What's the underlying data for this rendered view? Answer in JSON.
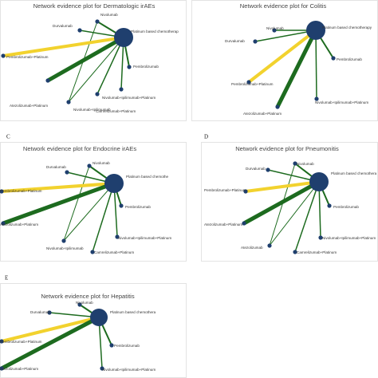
{
  "panels": [
    {
      "letter": null,
      "title": "Network evidence plot for Dermatologic irAEs",
      "hub": "Platinum based chemotherap",
      "nodes": [
        "Nivolumab",
        "Durvalumab",
        "Pembrolizumab+Platinum",
        "Pembrolizumab",
        "Atezolizumab+Platinum",
        "Nivolumab+Ipilimumab",
        "Camrelizumab+Platinum",
        "Nivolumab+Ipilimumab+Platinum"
      ]
    },
    {
      "letter": null,
      "title": "Network evidence plot for Colitis",
      "hub": "Platinum based chemotherapy",
      "nodes": [
        "Nivolumab",
        "Durvalumab",
        "Pembrolizumab",
        "Pembrolizumab+Platinum",
        "Atezolizumab+Platinum",
        "Nivolumab+Ipilimumab+Platinum"
      ]
    },
    {
      "letter": "C",
      "title": "Network evidence plot for Endocrine irAEs",
      "hub": "Platinum based chemothe",
      "nodes": [
        "Nivolumab",
        "Durvalumab",
        "Pembrolizumab+Platinum",
        "Pembrolizumab",
        "Atezolizumab+Platinum",
        "Nivolumab+Ipilimumab",
        "Camrelizumab+Platinum",
        "Nivolumab+Ipilimumab+Platinum"
      ]
    },
    {
      "letter": "D",
      "title": "Network evidence plot for Pneumonitis",
      "hub": "Platinum based chemothera",
      "nodes": [
        "Nivolumab",
        "Durvalumab",
        "Pembrolizumab+Platinum",
        "Pembrolizumab",
        "Atezolizumab+Platinum",
        "Atezolizumab",
        "Camrelizumab+Platinum",
        "Nivolumab+Ipilimumab+Platinum"
      ]
    },
    {
      "letter": "E",
      "title": "Network evidence plot for Hepatitis",
      "hub": "Platinum based chemothera",
      "nodes": [
        "Nivolumab",
        "Durvalumab",
        "Pembrolizumab+Platinum",
        "Pembrolizumab",
        "Atezolizumab+Platinum",
        "Nivolumab+Ipilimumab+Platinum"
      ]
    }
  ]
}
